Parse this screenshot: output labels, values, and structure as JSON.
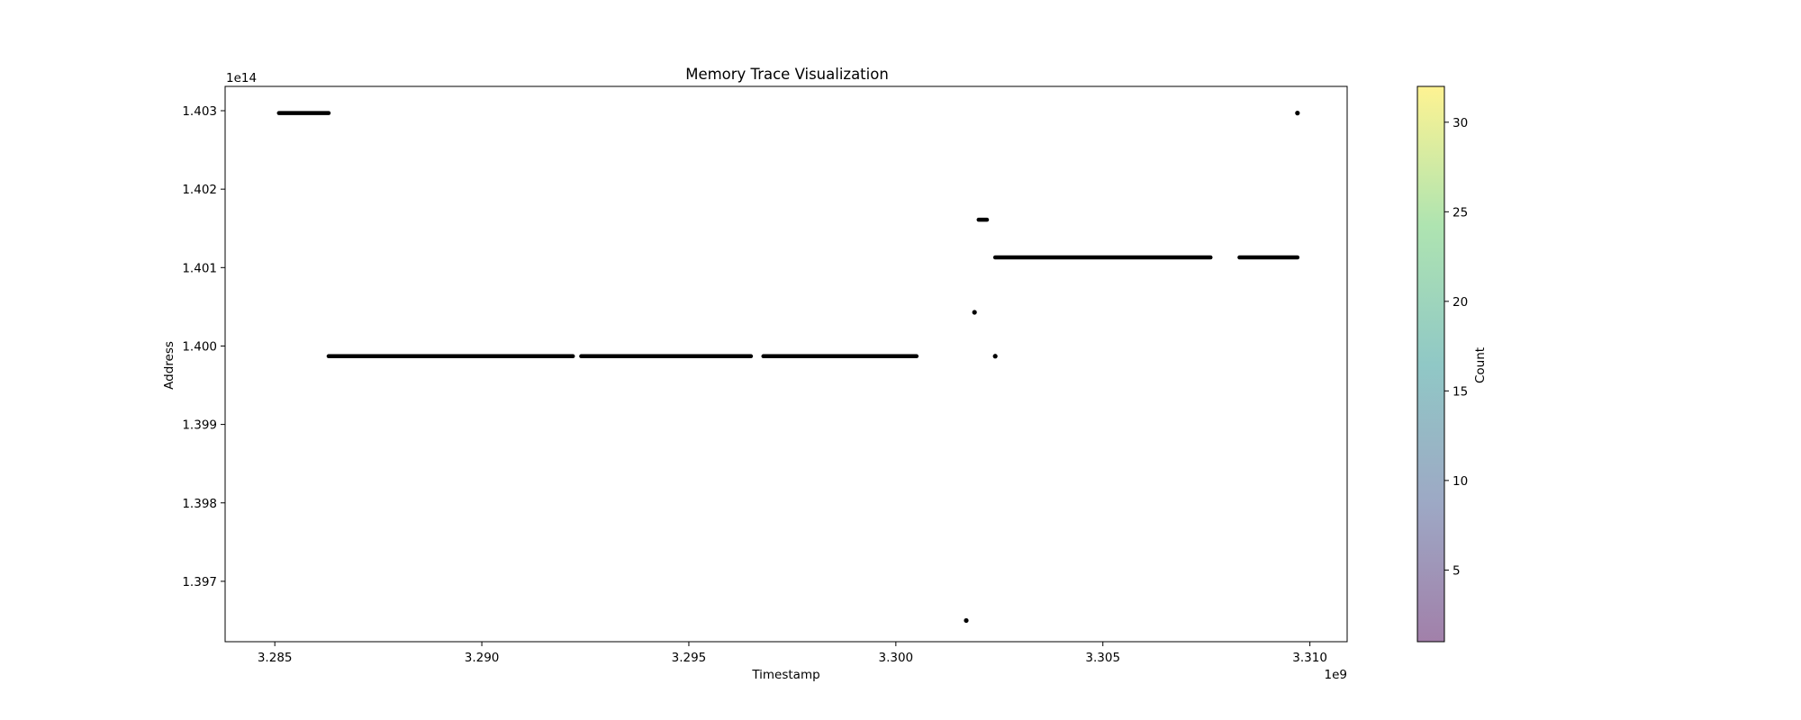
{
  "chart_data": {
    "type": "scatter",
    "title": "Memory Trace Visualization",
    "xlabel": "Timestamp",
    "ylabel": "Address",
    "x_offset_label": "1e9",
    "y_offset_label": "1e14",
    "xlim": [
      3.2838,
      3.3109
    ],
    "ylim": [
      1.39623,
      1.40331
    ],
    "x_ticks": [
      3.285,
      3.29,
      3.295,
      3.3,
      3.305,
      3.31
    ],
    "x_tick_labels": [
      "3.285",
      "3.290",
      "3.295",
      "3.300",
      "3.305",
      "3.310"
    ],
    "y_ticks": [
      1.397,
      1.398,
      1.399,
      1.4,
      1.401,
      1.402,
      1.403
    ],
    "y_tick_labels": [
      "1.397",
      "1.398",
      "1.399",
      "1.400",
      "1.401",
      "1.402",
      "1.403"
    ],
    "grid": false,
    "marker_color": "#000000",
    "segments": [
      {
        "x_start": 3.2851,
        "x_end": 3.2863,
        "y": 1.40297
      },
      {
        "x_start": 3.2863,
        "x_end": 3.2899,
        "y": 1.39987
      },
      {
        "x_start": 3.2899,
        "x_end": 3.2922,
        "y": 1.39987
      },
      {
        "x_start": 3.2924,
        "x_end": 3.2965,
        "y": 1.39987
      },
      {
        "x_start": 3.2968,
        "x_end": 3.3005,
        "y": 1.39987
      },
      {
        "x_start": 3.302,
        "x_end": 3.3022,
        "y": 1.40161
      },
      {
        "x_start": 3.3024,
        "x_end": 3.3076,
        "y": 1.40113
      },
      {
        "x_start": 3.3083,
        "x_end": 3.3097,
        "y": 1.40113
      }
    ],
    "points": [
      {
        "x": 3.3017,
        "y": 1.3965
      },
      {
        "x": 3.3019,
        "y": 1.40043
      },
      {
        "x": 3.3024,
        "y": 1.39987
      },
      {
        "x": 3.3097,
        "y": 1.40297
      }
    ],
    "colorbar": {
      "label": "Count",
      "min": 1,
      "max": 32,
      "ticks": [
        5,
        10,
        15,
        20,
        25,
        30
      ],
      "tick_labels": [
        "5",
        "10",
        "15",
        "20",
        "25",
        "30"
      ],
      "colormap": [
        "#440154",
        "#3b528b",
        "#21918c",
        "#5ec962",
        "#fde725"
      ],
      "alpha": 0.5
    }
  }
}
